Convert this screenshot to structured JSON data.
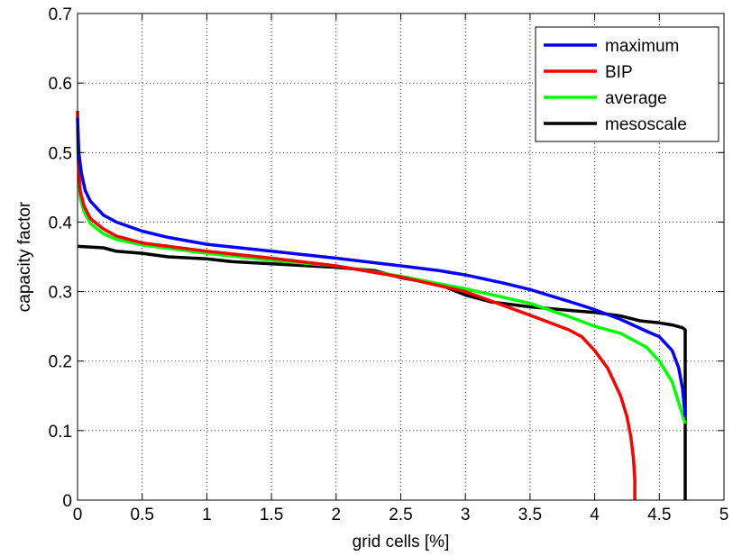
{
  "chart_data": {
    "type": "line",
    "title": "",
    "xlabel": "grid cells [%]",
    "ylabel": "capacity factor",
    "xlim": [
      0,
      5
    ],
    "ylim": [
      0,
      0.7
    ],
    "xticks": [
      0,
      0.5,
      1,
      1.5,
      2,
      2.5,
      3,
      3.5,
      4,
      4.5,
      5
    ],
    "xtick_labels": [
      "0",
      "0.5",
      "1",
      "1.5",
      "2",
      "2.5",
      "3",
      "3.5",
      "4",
      "4.5",
      "5"
    ],
    "yticks": [
      0,
      0.1,
      0.2,
      0.3,
      0.4,
      0.5,
      0.6,
      0.7
    ],
    "ytick_labels": [
      "0",
      "0.1",
      "0.2",
      "0.3",
      "0.4",
      "0.5",
      "0.6",
      "0.7"
    ],
    "grid": true,
    "legend_position": "top-right",
    "series": [
      {
        "name": "maximum",
        "color": "#0000ff",
        "x": [
          0,
          0.01,
          0.03,
          0.06,
          0.1,
          0.2,
          0.3,
          0.5,
          0.7,
          1.0,
          1.5,
          2.0,
          2.5,
          2.8,
          3.0,
          3.3,
          3.5,
          3.8,
          4.0,
          4.2,
          4.4,
          4.5,
          4.6,
          4.65,
          4.68,
          4.7
        ],
        "y": [
          0.55,
          0.5,
          0.47,
          0.445,
          0.43,
          0.41,
          0.4,
          0.387,
          0.378,
          0.368,
          0.358,
          0.348,
          0.337,
          0.33,
          0.324,
          0.312,
          0.303,
          0.286,
          0.274,
          0.26,
          0.243,
          0.235,
          0.215,
          0.19,
          0.16,
          0.12
        ]
      },
      {
        "name": "BIP",
        "color": "#ff0000",
        "x": [
          0,
          0.005,
          0.02,
          0.05,
          0.1,
          0.2,
          0.3,
          0.5,
          1.0,
          1.5,
          2.0,
          2.5,
          3.0,
          3.5,
          3.8,
          3.9,
          4.0,
          4.1,
          4.2,
          4.25,
          4.28,
          4.3,
          4.31,
          4.31
        ],
        "y": [
          0.56,
          0.5,
          0.445,
          0.423,
          0.405,
          0.39,
          0.38,
          0.37,
          0.358,
          0.348,
          0.337,
          0.321,
          0.3,
          0.266,
          0.245,
          0.235,
          0.215,
          0.19,
          0.15,
          0.12,
          0.09,
          0.06,
          0.03,
          0
        ]
      },
      {
        "name": "average",
        "color": "#00ff00",
        "x": [
          0,
          0.005,
          0.02,
          0.05,
          0.1,
          0.2,
          0.3,
          0.5,
          1.0,
          1.5,
          2.0,
          2.5,
          3.0,
          3.5,
          3.8,
          4.0,
          4.2,
          4.4,
          4.5,
          4.6,
          4.65,
          4.7
        ],
        "y": [
          0.535,
          0.49,
          0.435,
          0.415,
          0.398,
          0.383,
          0.375,
          0.367,
          0.355,
          0.345,
          0.337,
          0.322,
          0.304,
          0.283,
          0.264,
          0.25,
          0.24,
          0.22,
          0.2,
          0.17,
          0.14,
          0.11
        ]
      },
      {
        "name": "mesoscale",
        "color": "#000000",
        "x": [
          0,
          0.2,
          0.3,
          0.5,
          0.7,
          1.0,
          1.2,
          1.5,
          2.0,
          2.3,
          2.5,
          2.8,
          3.0,
          3.2,
          3.5,
          3.8,
          4.0,
          4.2,
          4.35,
          4.5,
          4.6,
          4.68,
          4.7,
          4.7
        ],
        "y": [
          0.365,
          0.363,
          0.358,
          0.355,
          0.35,
          0.347,
          0.343,
          0.34,
          0.335,
          0.33,
          0.32,
          0.31,
          0.295,
          0.285,
          0.278,
          0.273,
          0.27,
          0.265,
          0.258,
          0.255,
          0.252,
          0.248,
          0.245,
          0
        ]
      }
    ]
  }
}
